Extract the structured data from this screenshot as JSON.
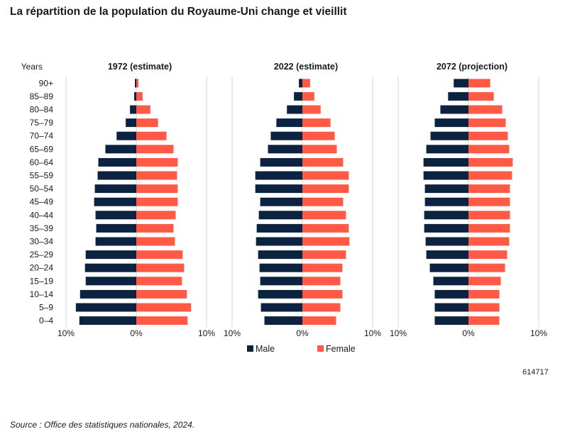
{
  "title": "La répartition de la population du Royaume-Uni change et vieillit",
  "id_number": "614717",
  "source": "Source : Office des statistiques nationales, 2024.",
  "colors": {
    "male": "#0b2341",
    "female": "#ff5a45",
    "grid": "#d6d6d6"
  },
  "chart_data": {
    "type": "bar",
    "orientation": "horizontal-pyramid",
    "age_axis_label": "Years",
    "categories": [
      "90+",
      "85–89",
      "80–84",
      "75–79",
      "70–74",
      "65–69",
      "60–64",
      "55–59",
      "50–54",
      "45–49",
      "40–44",
      "35–39",
      "30–34",
      "25–29",
      "20–24",
      "15–19",
      "10–14",
      "5–9",
      "0–4"
    ],
    "x_ticks": [
      "10%",
      "0%",
      "10%"
    ],
    "xlim": [
      -10,
      10
    ],
    "legend": [
      {
        "name": "Male"
      },
      {
        "name": "Female"
      }
    ],
    "panels": [
      {
        "title": "1972 (estimate)",
        "male": [
          0.2,
          0.3,
          0.9,
          1.5,
          2.8,
          4.4,
          5.4,
          5.5,
          5.9,
          6.0,
          5.8,
          5.7,
          5.8,
          7.2,
          7.3,
          7.2,
          8.0,
          8.6,
          8.1
        ],
        "female": [
          0.3,
          0.9,
          2.0,
          3.1,
          4.3,
          5.3,
          5.9,
          5.8,
          5.9,
          5.9,
          5.6,
          5.3,
          5.5,
          6.6,
          6.8,
          6.5,
          7.2,
          7.8,
          7.3
        ]
      },
      {
        "title": "2022 (estimate)",
        "male": [
          0.5,
          1.2,
          2.2,
          3.7,
          4.5,
          4.9,
          6.0,
          6.7,
          6.7,
          6.0,
          6.2,
          6.5,
          6.6,
          6.3,
          6.1,
          6.0,
          6.3,
          5.9,
          5.4
        ],
        "female": [
          1.1,
          1.7,
          2.6,
          4.0,
          4.6,
          4.9,
          5.8,
          6.6,
          6.6,
          5.8,
          6.2,
          6.6,
          6.7,
          6.2,
          5.7,
          5.4,
          5.7,
          5.4,
          4.8
        ]
      },
      {
        "title": "2072 (projection)",
        "male": [
          2.1,
          2.9,
          4.0,
          4.8,
          5.4,
          6.0,
          6.4,
          6.4,
          6.2,
          6.2,
          6.3,
          6.3,
          6.1,
          6.0,
          5.5,
          5.0,
          4.8,
          4.8,
          4.8
        ],
        "female": [
          3.1,
          3.6,
          4.8,
          5.3,
          5.6,
          5.8,
          6.3,
          6.2,
          5.9,
          5.9,
          5.9,
          5.9,
          5.8,
          5.5,
          5.2,
          4.6,
          4.4,
          4.4,
          4.4
        ]
      }
    ]
  }
}
